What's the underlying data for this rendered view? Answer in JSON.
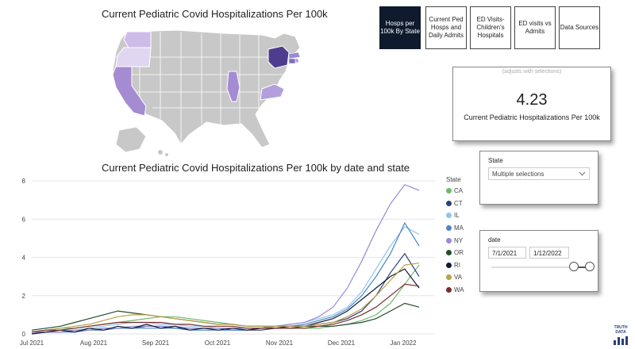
{
  "map": {
    "title": "Current Pediatric Covid Hospitalizations Per 100k",
    "colors": {
      "base": "#c8c8c8",
      "light": "#cdbbe8",
      "mid": "#a58bd2",
      "dark": "#4e3d8f",
      "border": "#ffffff"
    }
  },
  "nav": {
    "buttons": [
      {
        "label": "Hosps per 100k By State",
        "active": true
      },
      {
        "label": "Current Ped Hosps and Daily Admits",
        "active": false
      },
      {
        "label": "ED Visits- Children's Hospitals",
        "active": false
      },
      {
        "label": "ED visits vs Admits",
        "active": false
      },
      {
        "label": "Data Sources",
        "active": false
      }
    ]
  },
  "kpi": {
    "note": "(adjusts with selections)",
    "value": "4.23",
    "label": "Current Pediatric Hospitalizations Per 100k"
  },
  "state_filter": {
    "title": "State",
    "value": "Multiple selections",
    "icon": "chevron-down-icon"
  },
  "date_filter": {
    "title": "date",
    "start": "7/1/2021",
    "end": "1/12/2022",
    "slider_start": 0.84,
    "slider_end": 1.0
  },
  "logo": {
    "text": "TRUTH DATA"
  },
  "chart_data": {
    "type": "line",
    "title": "Current Pediatric Covid Hospitalizations Per 100k by date and state",
    "legend_title": "State",
    "legend_position": "right",
    "x_ticks": [
      "Jul 2021",
      "Aug 2021",
      "Sep 2021",
      "Oct 2021",
      "Nov 2021",
      "Dec 2021",
      "Jan 2022"
    ],
    "x_range": [
      "2021-07-01",
      "2022-01-12"
    ],
    "ylim": [
      0,
      8
    ],
    "y_ticks": [
      0,
      2,
      4,
      6,
      8
    ],
    "grid": true,
    "x_step": "weekly",
    "series": [
      {
        "name": "CA",
        "color": "#6fb96f",
        "values": [
          0.1,
          0.2,
          0.3,
          0.3,
          0.4,
          0.5,
          0.6,
          0.7,
          0.8,
          0.9,
          0.9,
          0.8,
          0.7,
          0.6,
          0.5,
          0.4,
          0.4,
          0.3,
          0.3,
          0.3,
          0.3,
          0.4,
          0.5,
          0.7,
          1.0,
          1.6,
          2.6,
          3.6
        ]
      },
      {
        "name": "CT",
        "color": "#2d3f7a",
        "values": [
          0.1,
          0.1,
          0.1,
          0.2,
          0.2,
          0.3,
          0.3,
          0.3,
          0.4,
          0.4,
          0.3,
          0.3,
          0.3,
          0.3,
          0.2,
          0.2,
          0.2,
          0.3,
          0.3,
          0.4,
          0.5,
          0.6,
          0.8,
          1.2,
          2.0,
          3.2,
          4.2,
          3.0
        ]
      },
      {
        "name": "IL",
        "color": "#8fc6ea",
        "values": [
          0.1,
          0.1,
          0.2,
          0.2,
          0.3,
          0.4,
          0.5,
          0.6,
          0.6,
          0.5,
          0.5,
          0.4,
          0.4,
          0.3,
          0.3,
          0.3,
          0.3,
          0.4,
          0.5,
          0.6,
          0.8,
          1.0,
          1.4,
          2.2,
          3.4,
          4.6,
          5.6,
          5.2
        ]
      },
      {
        "name": "MA",
        "color": "#4a86c8",
        "values": [
          0.0,
          0.1,
          0.1,
          0.1,
          0.2,
          0.2,
          0.3,
          0.3,
          0.3,
          0.3,
          0.3,
          0.2,
          0.2,
          0.2,
          0.2,
          0.2,
          0.3,
          0.3,
          0.4,
          0.5,
          0.7,
          0.9,
          1.3,
          2.0,
          3.0,
          4.2,
          5.8,
          4.6
        ]
      },
      {
        "name": "NY",
        "color": "#9a89d6",
        "values": [
          0.1,
          0.1,
          0.1,
          0.2,
          0.2,
          0.3,
          0.3,
          0.4,
          0.4,
          0.4,
          0.4,
          0.3,
          0.3,
          0.3,
          0.3,
          0.3,
          0.3,
          0.4,
          0.5,
          0.6,
          0.9,
          1.4,
          2.4,
          3.8,
          5.4,
          6.8,
          7.8,
          7.5
        ]
      },
      {
        "name": "OR",
        "color": "#254d2c",
        "values": [
          0.2,
          0.3,
          0.4,
          0.6,
          0.8,
          1.0,
          1.2,
          1.1,
          1.0,
          0.9,
          0.8,
          0.7,
          0.6,
          0.5,
          0.5,
          0.4,
          0.4,
          0.4,
          0.4,
          0.4,
          0.4,
          0.4,
          0.5,
          0.6,
          0.8,
          1.2,
          1.6,
          1.4
        ]
      },
      {
        "name": "RI",
        "color": "#121a33",
        "values": [
          0.0,
          0.1,
          0.2,
          0.1,
          0.3,
          0.2,
          0.4,
          0.3,
          0.5,
          0.3,
          0.4,
          0.2,
          0.3,
          0.2,
          0.3,
          0.2,
          0.3,
          0.3,
          0.4,
          0.4,
          0.6,
          0.8,
          1.2,
          1.8,
          2.4,
          3.0,
          3.4,
          2.4
        ]
      },
      {
        "name": "VA",
        "color": "#b8a24a",
        "values": [
          0.1,
          0.2,
          0.3,
          0.4,
          0.5,
          0.7,
          0.9,
          1.0,
          1.0,
          0.9,
          0.8,
          0.7,
          0.6,
          0.5,
          0.5,
          0.4,
          0.4,
          0.4,
          0.4,
          0.4,
          0.5,
          0.6,
          0.9,
          1.3,
          2.0,
          2.8,
          3.6,
          3.7
        ]
      },
      {
        "name": "WA",
        "color": "#7a2d2d",
        "values": [
          0.1,
          0.2,
          0.2,
          0.3,
          0.4,
          0.5,
          0.6,
          0.6,
          0.6,
          0.6,
          0.5,
          0.5,
          0.4,
          0.4,
          0.4,
          0.3,
          0.3,
          0.3,
          0.3,
          0.3,
          0.4,
          0.5,
          0.7,
          1.0,
          1.4,
          2.0,
          2.6,
          2.5
        ]
      }
    ]
  }
}
